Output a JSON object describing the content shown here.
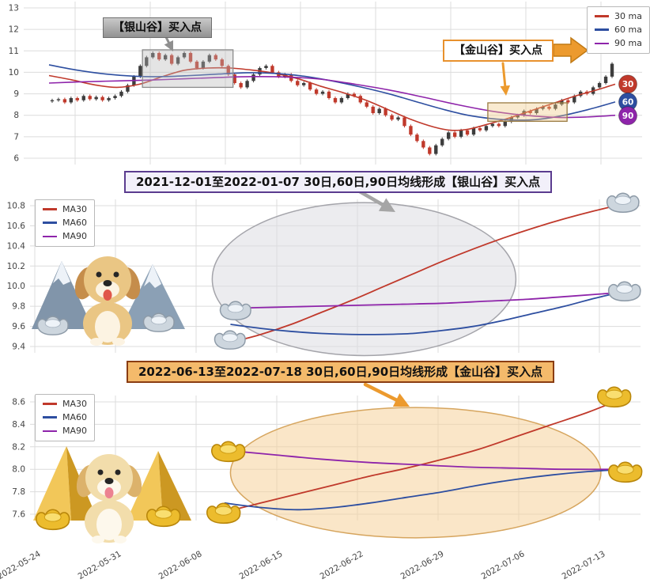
{
  "ui": {
    "silver_banner": "2021-12-01至2022-01-07 30日,60日,90日均线形成【银山谷】买入点",
    "gold_banner": "2022-06-13至2022-07-18 30日,60日,90日均线形成【金山谷】买入点",
    "colors": {
      "ma30": "#c0392b",
      "ma60": "#2d4ea0",
      "ma90": "#8e24aa",
      "up_candle": "#3d3d3d",
      "down_candle": "#c0392b",
      "grid": "#dcdcdc",
      "silver_fill": "#dcdce2",
      "gold_fill": "#f6d29a"
    }
  },
  "chart_data": [
    {
      "type": "candlestick",
      "panel": "top",
      "legend": [
        "30 ma",
        "60 ma",
        "90 ma"
      ],
      "yticks": [
        "13",
        "12",
        "11",
        "10",
        "9",
        "8",
        "7",
        "6"
      ],
      "ylim": [
        6,
        13
      ],
      "closes": [
        8.7,
        8.75,
        8.6,
        8.8,
        8.7,
        8.9,
        8.75,
        8.85,
        8.7,
        8.8,
        8.9,
        9.1,
        9.4,
        9.8,
        10.3,
        10.7,
        10.9,
        10.6,
        10.8,
        10.4,
        10.7,
        10.9,
        10.5,
        10.2,
        10.5,
        10.8,
        10.6,
        10.3,
        9.9,
        9.5,
        9.3,
        9.6,
        9.9,
        10.2,
        10.3,
        10.0,
        9.8,
        9.9,
        9.6,
        9.4,
        9.5,
        9.2,
        9.0,
        9.1,
        8.8,
        8.6,
        8.8,
        9.0,
        8.9,
        8.6,
        8.4,
        8.1,
        8.3,
        8.0,
        7.8,
        7.9,
        7.5,
        7.1,
        6.8,
        6.5,
        6.2,
        6.6,
        6.9,
        7.2,
        7.0,
        7.3,
        7.1,
        7.4,
        7.3,
        7.5,
        7.6,
        7.5,
        7.7,
        7.9,
        8.0,
        8.2,
        8.1,
        8.3,
        8.4,
        8.3,
        8.5,
        8.7,
        8.6,
        8.9,
        9.1,
        9.0,
        9.3,
        9.5,
        9.8,
        10.4
      ],
      "series": [
        {
          "name": "30 ma",
          "color_key": "ma30",
          "points": [
            [
              0,
              9.85
            ],
            [
              0.04,
              9.65
            ],
            [
              0.08,
              9.42
            ],
            [
              0.12,
              9.3
            ],
            [
              0.16,
              9.45
            ],
            [
              0.2,
              9.8
            ],
            [
              0.24,
              10.1
            ],
            [
              0.28,
              10.2
            ],
            [
              0.32,
              10.2
            ],
            [
              0.36,
              10.1
            ],
            [
              0.4,
              9.95
            ],
            [
              0.44,
              9.7
            ],
            [
              0.48,
              9.35
            ],
            [
              0.52,
              9.05
            ],
            [
              0.56,
              8.7
            ],
            [
              0.6,
              8.25
            ],
            [
              0.64,
              7.8
            ],
            [
              0.68,
              7.45
            ],
            [
              0.71,
              7.3
            ],
            [
              0.74,
              7.35
            ],
            [
              0.77,
              7.55
            ],
            [
              0.81,
              7.85
            ],
            [
              0.85,
              8.2
            ],
            [
              0.89,
              8.55
            ],
            [
              0.93,
              8.9
            ],
            [
              0.97,
              9.2
            ],
            [
              1,
              9.45
            ]
          ]
        },
        {
          "name": "60 ma",
          "color_key": "ma60",
          "points": [
            [
              0,
              10.35
            ],
            [
              0.05,
              10.1
            ],
            [
              0.1,
              9.92
            ],
            [
              0.15,
              9.82
            ],
            [
              0.2,
              9.8
            ],
            [
              0.25,
              9.85
            ],
            [
              0.3,
              9.92
            ],
            [
              0.35,
              9.98
            ],
            [
              0.4,
              9.95
            ],
            [
              0.45,
              9.82
            ],
            [
              0.5,
              9.6
            ],
            [
              0.55,
              9.32
            ],
            [
              0.6,
              9.0
            ],
            [
              0.65,
              8.62
            ],
            [
              0.7,
              8.25
            ],
            [
              0.74,
              8.0
            ],
            [
              0.78,
              7.85
            ],
            [
              0.82,
              7.78
            ],
            [
              0.86,
              7.8
            ],
            [
              0.9,
              7.95
            ],
            [
              0.95,
              8.25
            ],
            [
              1,
              8.62
            ]
          ]
        },
        {
          "name": "90 ma",
          "color_key": "ma90",
          "points": [
            [
              0,
              9.5
            ],
            [
              0.06,
              9.56
            ],
            [
              0.12,
              9.6
            ],
            [
              0.18,
              9.64
            ],
            [
              0.24,
              9.7
            ],
            [
              0.3,
              9.76
            ],
            [
              0.36,
              9.8
            ],
            [
              0.42,
              9.78
            ],
            [
              0.48,
              9.68
            ],
            [
              0.54,
              9.45
            ],
            [
              0.6,
              9.18
            ],
            [
              0.66,
              8.85
            ],
            [
              0.72,
              8.5
            ],
            [
              0.78,
              8.2
            ],
            [
              0.84,
              8.0
            ],
            [
              0.9,
              7.9
            ],
            [
              0.95,
              7.92
            ],
            [
              1,
              8.0
            ]
          ]
        }
      ],
      "badges": [
        {
          "label": "30",
          "value": 9.45,
          "color_key": "ma30"
        },
        {
          "label": "60",
          "value": 8.62,
          "color_key": "ma60"
        },
        {
          "label": "90",
          "value": 7.98,
          "color_key": "ma90"
        }
      ],
      "annotations": {
        "silver_label": "【银山谷】买入点",
        "gold_label": "【金山谷】买入点",
        "silver_box": {
          "x0": 0.165,
          "x1": 0.325,
          "y0": 9.3,
          "y1": 11.05
        },
        "gold_box": {
          "x0": 0.775,
          "x1": 0.915,
          "y0": 7.72,
          "y1": 8.58
        }
      }
    },
    {
      "type": "line",
      "panel": "mid",
      "legend": [
        "MA30",
        "MA60",
        "MA90"
      ],
      "yticks": [
        "10.8",
        "10.6",
        "10.4",
        "10.2",
        "10.0",
        "9.8",
        "9.6",
        "9.4"
      ],
      "ylim": [
        9.4,
        10.8
      ],
      "series": [
        {
          "name": "MA30",
          "color_key": "ma30",
          "points": [
            [
              0.33,
              9.44
            ],
            [
              0.38,
              9.52
            ],
            [
              0.43,
              9.62
            ],
            [
              0.48,
              9.74
            ],
            [
              0.53,
              9.86
            ],
            [
              0.58,
              9.99
            ],
            [
              0.63,
              10.12
            ],
            [
              0.68,
              10.25
            ],
            [
              0.73,
              10.37
            ],
            [
              0.78,
              10.48
            ],
            [
              0.83,
              10.58
            ],
            [
              0.88,
              10.67
            ],
            [
              0.93,
              10.75
            ],
            [
              0.98,
              10.82
            ]
          ]
        },
        {
          "name": "MA60",
          "color_key": "ma60",
          "points": [
            [
              0.33,
              9.62
            ],
            [
              0.38,
              9.58
            ],
            [
              0.43,
              9.55
            ],
            [
              0.48,
              9.53
            ],
            [
              0.53,
              9.52
            ],
            [
              0.58,
              9.52
            ],
            [
              0.63,
              9.53
            ],
            [
              0.68,
              9.56
            ],
            [
              0.73,
              9.6
            ],
            [
              0.78,
              9.66
            ],
            [
              0.83,
              9.73
            ],
            [
              0.88,
              9.8
            ],
            [
              0.93,
              9.88
            ],
            [
              0.98,
              9.95
            ]
          ]
        },
        {
          "name": "MA90",
          "color_key": "ma90",
          "points": [
            [
              0.33,
              9.78
            ],
            [
              0.4,
              9.79
            ],
            [
              0.47,
              9.8
            ],
            [
              0.54,
              9.81
            ],
            [
              0.61,
              9.82
            ],
            [
              0.68,
              9.83
            ],
            [
              0.75,
              9.85
            ],
            [
              0.82,
              9.87
            ],
            [
              0.89,
              9.9
            ],
            [
              0.98,
              9.94
            ]
          ]
        }
      ],
      "ellipse": {
        "cx": 0.55,
        "cy": 10.07,
        "rx": 0.25,
        "ry": 0.76
      }
    },
    {
      "type": "line",
      "panel": "bot",
      "legend": [
        "MA30",
        "MA60",
        "MA90"
      ],
      "yticks": [
        "8.6",
        "8.4",
        "8.2",
        "8.0",
        "7.8",
        "7.6"
      ],
      "ylim": [
        7.6,
        8.6
      ],
      "xlabels": [
        "2022-05-24",
        "2022-05-31",
        "2022-06-08",
        "2022-06-15",
        "2022-06-22",
        "2022-06-29",
        "2022-07-06",
        "2022-07-13"
      ],
      "series": [
        {
          "name": "MA30",
          "color_key": "ma30",
          "points": [
            [
              0.32,
              7.62
            ],
            [
              0.38,
              7.7
            ],
            [
              0.44,
              7.78
            ],
            [
              0.5,
              7.86
            ],
            [
              0.56,
              7.94
            ],
            [
              0.62,
              8.01
            ],
            [
              0.68,
              8.09
            ],
            [
              0.74,
              8.18
            ],
            [
              0.8,
              8.29
            ],
            [
              0.86,
              8.4
            ],
            [
              0.92,
              8.51
            ],
            [
              0.98,
              8.64
            ]
          ]
        },
        {
          "name": "MA60",
          "color_key": "ma60",
          "points": [
            [
              0.32,
              7.7
            ],
            [
              0.38,
              7.66
            ],
            [
              0.44,
              7.64
            ],
            [
              0.5,
              7.66
            ],
            [
              0.56,
              7.7
            ],
            [
              0.62,
              7.75
            ],
            [
              0.68,
              7.8
            ],
            [
              0.74,
              7.86
            ],
            [
              0.8,
              7.91
            ],
            [
              0.86,
              7.95
            ],
            [
              0.92,
              7.98
            ],
            [
              0.98,
              8.0
            ]
          ]
        },
        {
          "name": "MA90",
          "color_key": "ma90",
          "points": [
            [
              0.32,
              8.17
            ],
            [
              0.4,
              8.13
            ],
            [
              0.48,
              8.09
            ],
            [
              0.56,
              8.06
            ],
            [
              0.64,
              8.04
            ],
            [
              0.72,
              8.02
            ],
            [
              0.8,
              8.01
            ],
            [
              0.88,
              8.0
            ],
            [
              0.98,
              8.0
            ]
          ]
        }
      ],
      "ellipse": {
        "cx": 0.635,
        "cy": 7.97,
        "rx": 0.305,
        "ry": 0.58
      }
    }
  ]
}
